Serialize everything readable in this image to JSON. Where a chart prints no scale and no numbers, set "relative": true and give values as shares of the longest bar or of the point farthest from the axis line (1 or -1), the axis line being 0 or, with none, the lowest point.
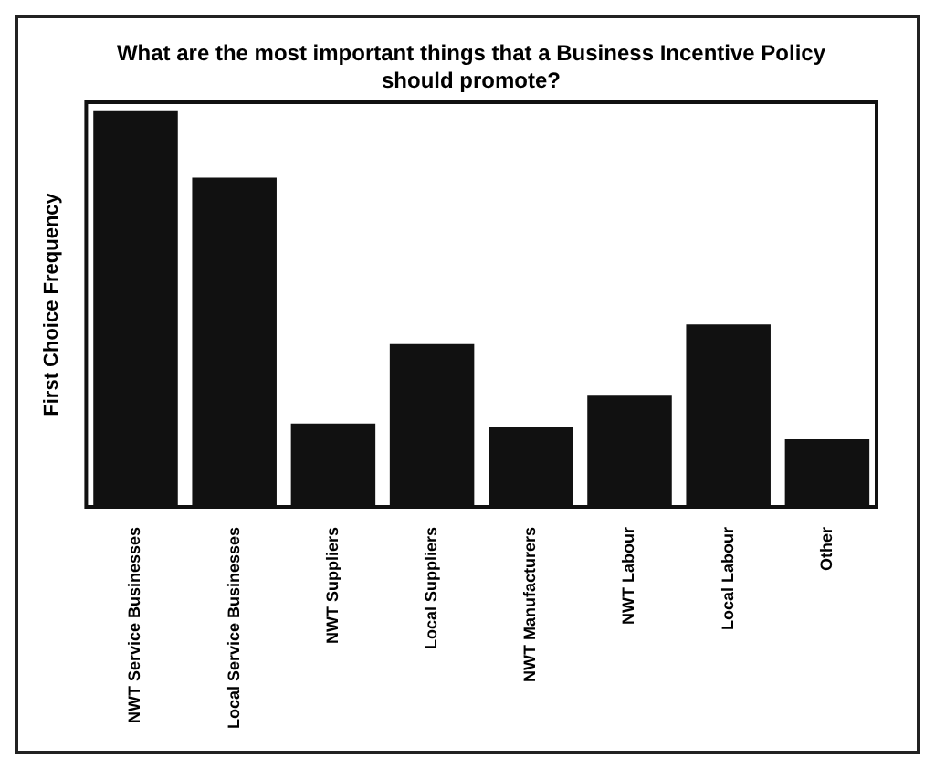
{
  "chart_data": {
    "type": "bar",
    "title": "What are the most important things that a Business Incentive Policy should promote?",
    "ylabel": "First Choice Frequency",
    "categories": [
      "NWT Service Businesses",
      "Local Service Businesses",
      "NWT Suppliers",
      "Local Suppliers",
      "NWT Manufacturers",
      "NWT Labour",
      "Local Labour",
      "Other"
    ],
    "values": [
      1,
      0.83,
      0.21,
      0.41,
      0.2,
      0.28,
      0.46,
      0.17
    ],
    "color": "#111111",
    "relative": true,
    "grid": false,
    "legend": false
  }
}
